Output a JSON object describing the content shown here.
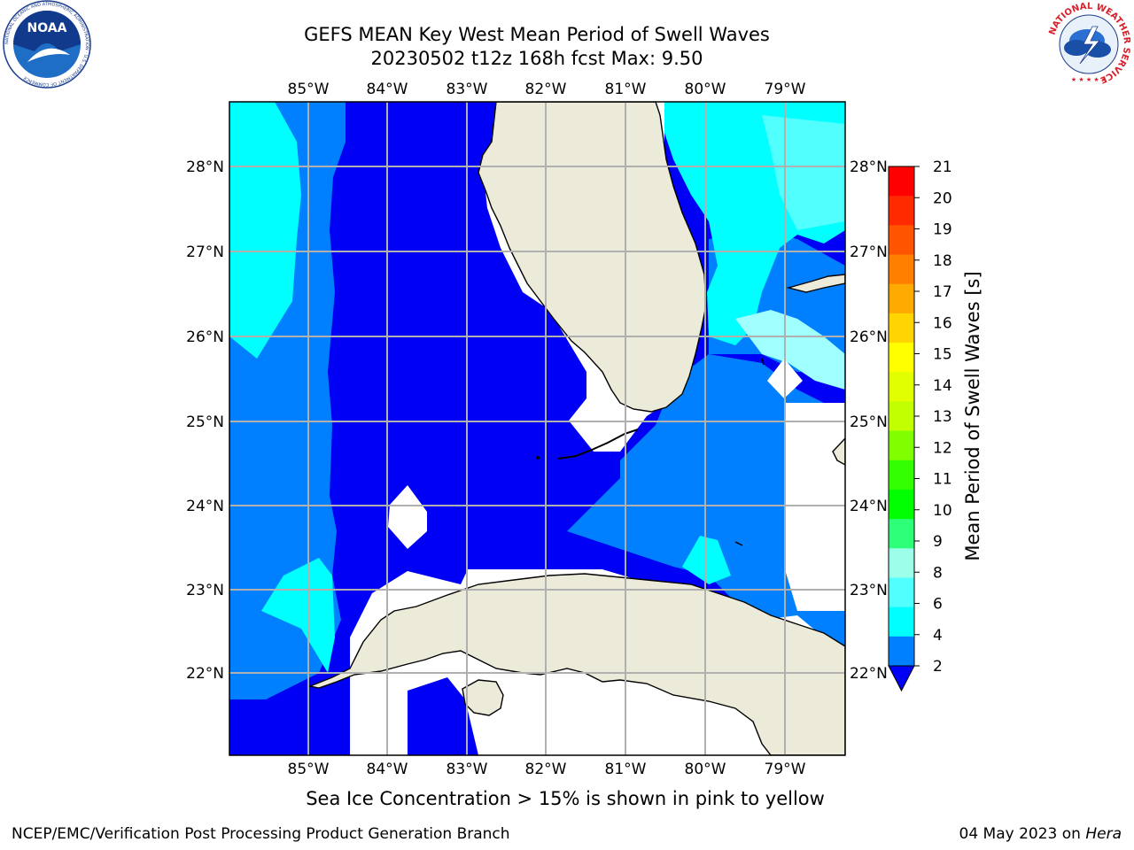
{
  "header": {
    "title_line1": "GEFS MEAN Key West Mean Period of Swell Waves",
    "title_line2": "20230502 t12z 168h fcst   Max: 9.50"
  },
  "logos": {
    "noaa_text": "NOAA",
    "noaa_ring_text": "NATIONAL OCEANIC AND ATMOSPHERIC ADMINISTRATION · U.S. DEPARTMENT OF COMMERCE",
    "nws_ring_text": "NATIONAL WEATHER SERVICE"
  },
  "map": {
    "lon_labels": [
      "85°W",
      "84°W",
      "83°W",
      "82°W",
      "81°W",
      "80°W",
      "79°W"
    ],
    "lat_labels": [
      "28°N",
      "27°N",
      "26°N",
      "25°N",
      "24°N",
      "23°N",
      "22°N"
    ],
    "colors": {
      "land": "#ecebd9",
      "no_data": "#ffffff",
      "band_2_4": "#0000f4",
      "band_4_6": "#0080ff",
      "band_6_8": "#00ffff",
      "band_8_9": "#52ffff",
      "band_9_10": "#a0ffff",
      "grid": "#b0b0b0"
    }
  },
  "colorbar": {
    "label": "Mean Period of Swell Waves [s]",
    "ticks": [
      "21",
      "20",
      "19",
      "18",
      "17",
      "16",
      "15",
      "14",
      "13",
      "12",
      "11",
      "10",
      "9",
      "8",
      "6",
      "4",
      "2"
    ],
    "colors": [
      "#ff0000",
      "#ff2a00",
      "#ff5500",
      "#ff7f00",
      "#ffaa00",
      "#ffd400",
      "#ffff00",
      "#e1ff00",
      "#c2ff00",
      "#7fff00",
      "#33ff00",
      "#00ff00",
      "#2dff79",
      "#9cffea",
      "#52ffff",
      "#00ffff",
      "#0080ff",
      "#0000f4"
    ]
  },
  "footer": {
    "sea_ice_note": "Sea Ice Concentration > 15% is shown in pink to yellow",
    "credit_left": "NCEP/EMC/Verification Post Processing Product Generation Branch",
    "credit_date": "04 May 2023 on",
    "credit_machine": "Hera"
  }
}
